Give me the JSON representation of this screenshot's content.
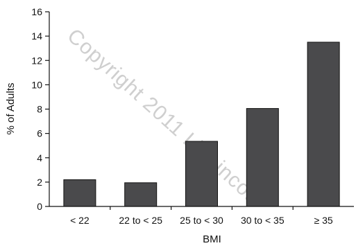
{
  "chart_data": {
    "type": "bar",
    "categories": [
      "< 22",
      "22 to < 25",
      "25 to < 30",
      "30 to < 35",
      "≥ 35"
    ],
    "values": [
      2.2,
      1.95,
      5.35,
      8.05,
      13.5
    ],
    "title": "",
    "xlabel": "BMI",
    "ylabel": "% of Adults",
    "ylim": [
      0,
      16
    ],
    "yticks": [
      0,
      2,
      4,
      6,
      8,
      10,
      12,
      14,
      16
    ],
    "grid": false,
    "bar_color": "#4a4a4c",
    "bar_outline_color": "#111111"
  },
  "watermark": {
    "text": "Copyright 2011 Lippincott",
    "color": "#cfcfcf"
  }
}
